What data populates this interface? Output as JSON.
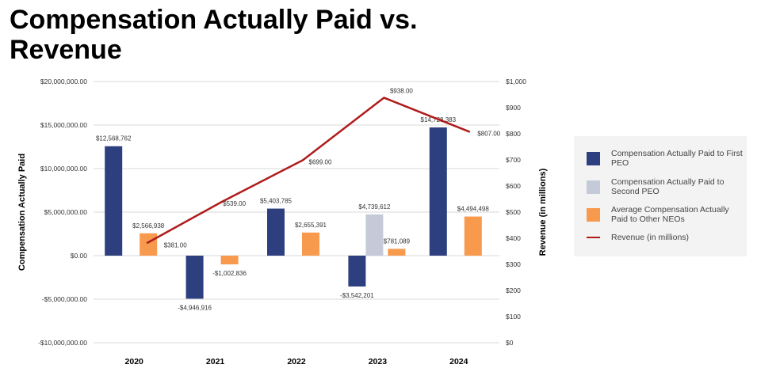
{
  "title": "Compensation Actually Paid vs. Revenue",
  "colors": {
    "first_peo": "#2e3f7f",
    "second_peo": "#c5cad9",
    "other_neos": "#f79a4e",
    "revenue": "#b01c1c",
    "grid": "#d9d9d9"
  },
  "chart_data": {
    "type": "bar",
    "categories": [
      "2020",
      "2021",
      "2022",
      "2023",
      "2024"
    ],
    "ylabel": "Compensation Actually Paid",
    "y2label": "Revenue (in millions)",
    "ylim": [
      -10000000,
      20000000
    ],
    "y2lim": [
      0,
      1000
    ],
    "y_ticks": [
      {
        "value": 20000000,
        "label": "$20,000,000.00"
      },
      {
        "value": 15000000,
        "label": "$15,000,000.00"
      },
      {
        "value": 10000000,
        "label": "$10,000,000.00"
      },
      {
        "value": 5000000,
        "label": "$5,000,000.00"
      },
      {
        "value": 0,
        "label": "$0.00"
      },
      {
        "value": -5000000,
        "label": "-$5,000,000.00"
      },
      {
        "value": -10000000,
        "label": "-$10,000,000.00"
      }
    ],
    "y2_ticks": [
      {
        "value": 1000,
        "label": "$1,000"
      },
      {
        "value": 900,
        "label": "$900"
      },
      {
        "value": 800,
        "label": "$800"
      },
      {
        "value": 700,
        "label": "$700"
      },
      {
        "value": 600,
        "label": "$600"
      },
      {
        "value": 500,
        "label": "$500"
      },
      {
        "value": 400,
        "label": "$400"
      },
      {
        "value": 300,
        "label": "$300"
      },
      {
        "value": 200,
        "label": "$200"
      },
      {
        "value": 100,
        "label": "$100"
      },
      {
        "value": 0,
        "label": "$0"
      }
    ],
    "series": [
      {
        "name": "Compensation Actually Paid to First PEO",
        "kind": "bar",
        "values": [
          12568762,
          -4946916,
          5403785,
          -3542201,
          14728383
        ],
        "labels": [
          "$12,568,762",
          "-$4,946,916",
          "$5,403,785",
          "-$3,542,201",
          "$14,728,383"
        ]
      },
      {
        "name": "Compensation Actually Paid to Second PEO",
        "kind": "bar",
        "values": [
          null,
          null,
          null,
          4739612,
          null
        ],
        "labels": [
          "",
          "",
          "",
          "$4,739,612",
          ""
        ]
      },
      {
        "name": "Average Compensation Actually Paid to Other NEOs",
        "kind": "bar",
        "values": [
          2566938,
          -1002836,
          2655391,
          781089,
          4494498
        ],
        "labels": [
          "$2,566,938",
          "-$1,002,836",
          "$2,655,391",
          "$781,089",
          "$4,494,498"
        ]
      },
      {
        "name": "Revenue (in millions)",
        "kind": "line",
        "axis": "right",
        "values": [
          381,
          539,
          699,
          938,
          807
        ],
        "labels": [
          "$381.00",
          "$539.00",
          "$699.00",
          "$938.00",
          "$807.00"
        ]
      }
    ],
    "legend": [
      "Compensation Actually Paid to First PEO",
      "Compensation Actually Paid to Second PEO",
      "Average Compensation Actually Paid to Other NEOs",
      "Revenue (in millions)"
    ],
    "legend_position": "right"
  }
}
